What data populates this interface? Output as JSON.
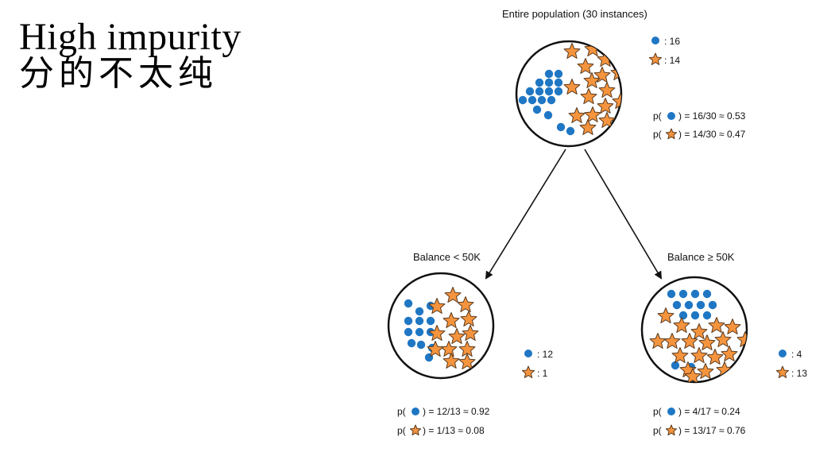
{
  "title": {
    "line1": "High impurity",
    "line2": "分的不太纯"
  },
  "colors": {
    "dot": "#1f77c4",
    "star_fill": "#f5943e",
    "star_stroke": "#5a3a1e",
    "line": "#111111"
  },
  "legend_icons": {
    "dot": "blue-dot-icon",
    "star": "orange-star-icon"
  },
  "nodes": {
    "root": {
      "header": "Entire population (30 instances)",
      "dot_count": ": 16",
      "star_count": ": 14",
      "p_dot_prefix": "p(",
      "p_dot_eq": ") = 16/30 ≈ 0.53",
      "p_star_prefix": "p(",
      "p_star_eq": ") = 14/30 ≈ 0.47"
    },
    "left": {
      "header": "Balance < 50K",
      "dot_count": ": 12",
      "star_count": ": 1",
      "p_dot_prefix": "p(",
      "p_dot_eq": ") = 12/13 ≈ 0.92",
      "p_star_prefix": "p(",
      "p_star_eq": ") = 1/13 ≈ 0.08"
    },
    "right": {
      "header": "Balance ≥ 50K",
      "dot_count": ": 4",
      "star_count": ": 13",
      "p_dot_prefix": "p(",
      "p_dot_eq": ") = 4/17 ≈ 0.24",
      "p_star_prefix": "p(",
      "p_star_eq": ") = 13/17 ≈ 0.76"
    }
  }
}
